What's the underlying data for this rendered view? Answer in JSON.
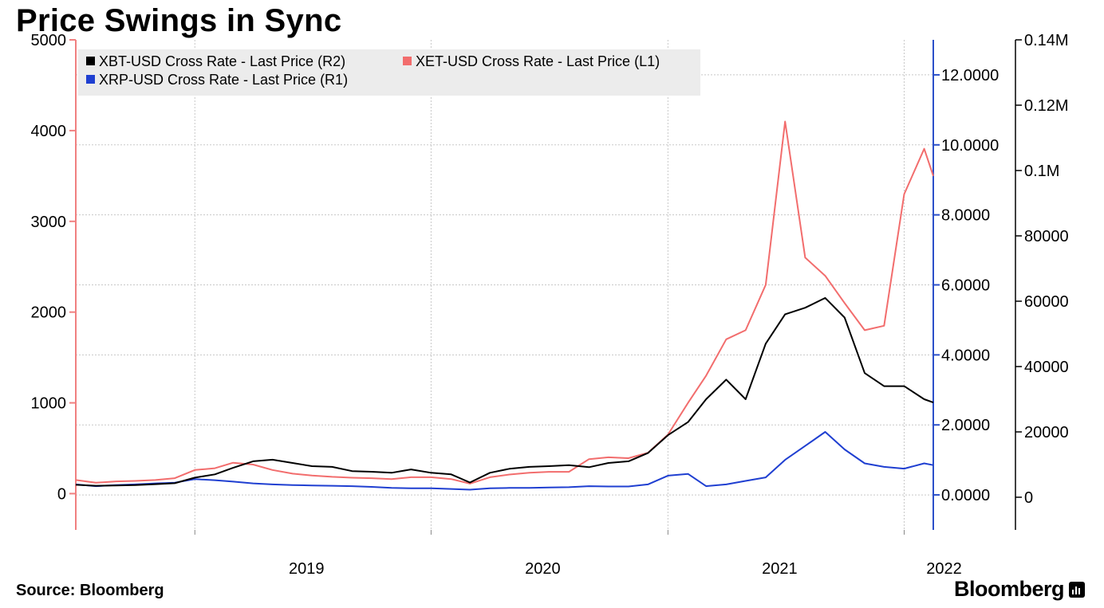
{
  "header": {
    "title": "Price Swings in Sync"
  },
  "footer": {
    "source": "Source: Bloomberg",
    "brand": "Bloomberg"
  },
  "colors": {
    "xbt": "#000000",
    "xet": "#f26d6d",
    "xrp": "#1f3fd1",
    "left_axis": "#f08080",
    "right_axis_1": "#2b4fc9",
    "right_axis_2": "#000000",
    "grid": "#c8c8c8",
    "legend_bg": "#ececec"
  },
  "icons": {
    "brand_logo": "bloomberg-terminal-icon"
  },
  "chart_data": {
    "type": "line",
    "title": "Price Swings in Sync",
    "x_range": [
      "2018-07-01",
      "2022-02-15"
    ],
    "x_ticks": [
      {
        "label": "2019",
        "date": "2019-01-01"
      },
      {
        "label": "2020",
        "date": "2020-01-01"
      },
      {
        "label": "2021",
        "date": "2021-01-01"
      },
      {
        "label": "2022",
        "date": "2022-01-01"
      }
    ],
    "axes": {
      "L1": {
        "range": [
          -400,
          5000
        ],
        "ticks": [
          0,
          1000,
          2000,
          3000,
          4000,
          5000
        ],
        "tick_labels": [
          "0",
          "1000",
          "2000",
          "3000",
          "4000",
          "5000"
        ]
      },
      "R1": {
        "range": [
          -1.0,
          13.0
        ],
        "ticks": [
          0,
          2,
          4,
          6,
          8,
          10,
          12
        ],
        "tick_labels": [
          "0.0000",
          "2.0000",
          "4.0000",
          "6.0000",
          "8.0000",
          "10.0000",
          "12.0000"
        ]
      },
      "R2": {
        "range": [
          -10000,
          140000
        ],
        "ticks": [
          0,
          20000,
          40000,
          60000,
          80000,
          100000,
          120000,
          140000
        ],
        "tick_labels": [
          "0",
          "20000",
          "40000",
          "60000",
          "80000",
          "0.1M",
          "0.12M",
          "0.14M"
        ]
      }
    },
    "grid": true,
    "legend_position": "top-left",
    "series": [
      {
        "name": "XBT-USD Cross Rate - Last Price (R2)",
        "axis": "R2",
        "color": "#000000",
        "points": [
          [
            "2018-07-01",
            3800
          ],
          [
            "2018-08-01",
            3500
          ],
          [
            "2018-09-01",
            3600
          ],
          [
            "2018-10-01",
            3700
          ],
          [
            "2018-11-01",
            4000
          ],
          [
            "2018-12-01",
            4300
          ],
          [
            "2019-01-01",
            6000
          ],
          [
            "2019-02-01",
            7000
          ],
          [
            "2019-03-01",
            9000
          ],
          [
            "2019-04-01",
            11000
          ],
          [
            "2019-05-01",
            11500
          ],
          [
            "2019-06-01",
            10500
          ],
          [
            "2019-07-01",
            9500
          ],
          [
            "2019-08-01",
            9300
          ],
          [
            "2019-09-01",
            8000
          ],
          [
            "2019-10-01",
            7800
          ],
          [
            "2019-11-01",
            7500
          ],
          [
            "2019-12-01",
            8500
          ],
          [
            "2020-01-01",
            7500
          ],
          [
            "2020-02-01",
            7000
          ],
          [
            "2020-03-01",
            4500
          ],
          [
            "2020-04-01",
            7500
          ],
          [
            "2020-05-01",
            8700
          ],
          [
            "2020-06-01",
            9300
          ],
          [
            "2020-07-01",
            9500
          ],
          [
            "2020-08-01",
            9800
          ],
          [
            "2020-09-01",
            9200
          ],
          [
            "2020-10-01",
            10500
          ],
          [
            "2020-11-01",
            11000
          ],
          [
            "2020-12-01",
            13500
          ],
          [
            "2021-01-01",
            19000
          ],
          [
            "2021-02-01",
            23000
          ],
          [
            "2021-03-01",
            30000
          ],
          [
            "2021-04-01",
            36000
          ],
          [
            "2021-05-01",
            30000
          ],
          [
            "2021-06-01",
            47000
          ],
          [
            "2021-07-01",
            56000
          ],
          [
            "2021-08-01",
            58000
          ],
          [
            "2021-09-01",
            61000
          ],
          [
            "2021-10-01",
            55000
          ],
          [
            "2021-11-01",
            38000
          ],
          [
            "2021-12-01",
            34000
          ],
          [
            "2022-01-01",
            34000
          ],
          [
            "2022-02-01",
            30000
          ],
          [
            "2022-02-15",
            29000
          ]
        ]
      },
      {
        "name": "XET-USD Cross Rate - Last Price (L1)",
        "axis": "L1",
        "color": "#f26d6d",
        "points": [
          [
            "2018-07-01",
            150
          ],
          [
            "2018-08-01",
            120
          ],
          [
            "2018-09-01",
            135
          ],
          [
            "2018-10-01",
            140
          ],
          [
            "2018-11-01",
            150
          ],
          [
            "2018-12-01",
            170
          ],
          [
            "2019-01-01",
            260
          ],
          [
            "2019-02-01",
            280
          ],
          [
            "2019-03-01",
            340
          ],
          [
            "2019-04-01",
            320
          ],
          [
            "2019-05-01",
            260
          ],
          [
            "2019-06-01",
            220
          ],
          [
            "2019-07-01",
            200
          ],
          [
            "2019-08-01",
            185
          ],
          [
            "2019-09-01",
            175
          ],
          [
            "2019-10-01",
            170
          ],
          [
            "2019-11-01",
            160
          ],
          [
            "2019-12-01",
            180
          ],
          [
            "2020-01-01",
            180
          ],
          [
            "2020-02-01",
            160
          ],
          [
            "2020-03-01",
            110
          ],
          [
            "2020-04-01",
            180
          ],
          [
            "2020-05-01",
            210
          ],
          [
            "2020-06-01",
            230
          ],
          [
            "2020-07-01",
            240
          ],
          [
            "2020-08-01",
            240
          ],
          [
            "2020-09-01",
            380
          ],
          [
            "2020-10-01",
            400
          ],
          [
            "2020-11-01",
            390
          ],
          [
            "2020-12-01",
            450
          ],
          [
            "2021-01-01",
            650
          ],
          [
            "2021-02-01",
            1000
          ],
          [
            "2021-03-01",
            1300
          ],
          [
            "2021-04-01",
            1700
          ],
          [
            "2021-05-01",
            1800
          ],
          [
            "2021-06-01",
            2300
          ],
          [
            "2021-07-01",
            4100
          ],
          [
            "2021-08-01",
            2600
          ],
          [
            "2021-09-01",
            2400
          ],
          [
            "2021-10-01",
            2100
          ],
          [
            "2021-11-01",
            1800
          ],
          [
            "2021-12-01",
            1850
          ],
          [
            "2022-01-01",
            3300
          ],
          [
            "2022-02-01",
            3800
          ],
          [
            "2022-02-15",
            3500
          ]
        ]
      },
      {
        "name": "XRP-USD Cross Rate - Last Price (R1)",
        "axis": "R1",
        "color": "#1f3fd1",
        "points": [
          [
            "2018-07-01",
            0.3
          ],
          [
            "2018-08-01",
            0.25
          ],
          [
            "2018-09-01",
            0.28
          ],
          [
            "2018-10-01",
            0.3
          ],
          [
            "2018-11-01",
            0.33
          ],
          [
            "2018-12-01",
            0.35
          ],
          [
            "2019-01-01",
            0.45
          ],
          [
            "2019-02-01",
            0.42
          ],
          [
            "2019-03-01",
            0.38
          ],
          [
            "2019-04-01",
            0.33
          ],
          [
            "2019-05-01",
            0.3
          ],
          [
            "2019-06-01",
            0.28
          ],
          [
            "2019-07-01",
            0.27
          ],
          [
            "2019-08-01",
            0.26
          ],
          [
            "2019-09-01",
            0.25
          ],
          [
            "2019-10-01",
            0.23
          ],
          [
            "2019-11-01",
            0.2
          ],
          [
            "2019-12-01",
            0.19
          ],
          [
            "2020-01-01",
            0.19
          ],
          [
            "2020-02-01",
            0.17
          ],
          [
            "2020-03-01",
            0.15
          ],
          [
            "2020-04-01",
            0.19
          ],
          [
            "2020-05-01",
            0.2
          ],
          [
            "2020-06-01",
            0.2
          ],
          [
            "2020-07-01",
            0.21
          ],
          [
            "2020-08-01",
            0.22
          ],
          [
            "2020-09-01",
            0.25
          ],
          [
            "2020-10-01",
            0.24
          ],
          [
            "2020-11-01",
            0.24
          ],
          [
            "2020-12-01",
            0.3
          ],
          [
            "2021-01-01",
            0.55
          ],
          [
            "2021-02-01",
            0.6
          ],
          [
            "2021-03-01",
            0.25
          ],
          [
            "2021-04-01",
            0.3
          ],
          [
            "2021-05-01",
            0.4
          ],
          [
            "2021-06-01",
            0.5
          ],
          [
            "2021-07-01",
            1.0
          ],
          [
            "2021-08-01",
            1.4
          ],
          [
            "2021-09-01",
            1.8
          ],
          [
            "2021-10-01",
            1.3
          ],
          [
            "2021-11-01",
            0.9
          ],
          [
            "2021-12-01",
            0.8
          ],
          [
            "2022-01-01",
            0.75
          ],
          [
            "2022-02-01",
            0.9
          ],
          [
            "2022-02-15",
            0.85
          ]
        ]
      }
    ]
  }
}
